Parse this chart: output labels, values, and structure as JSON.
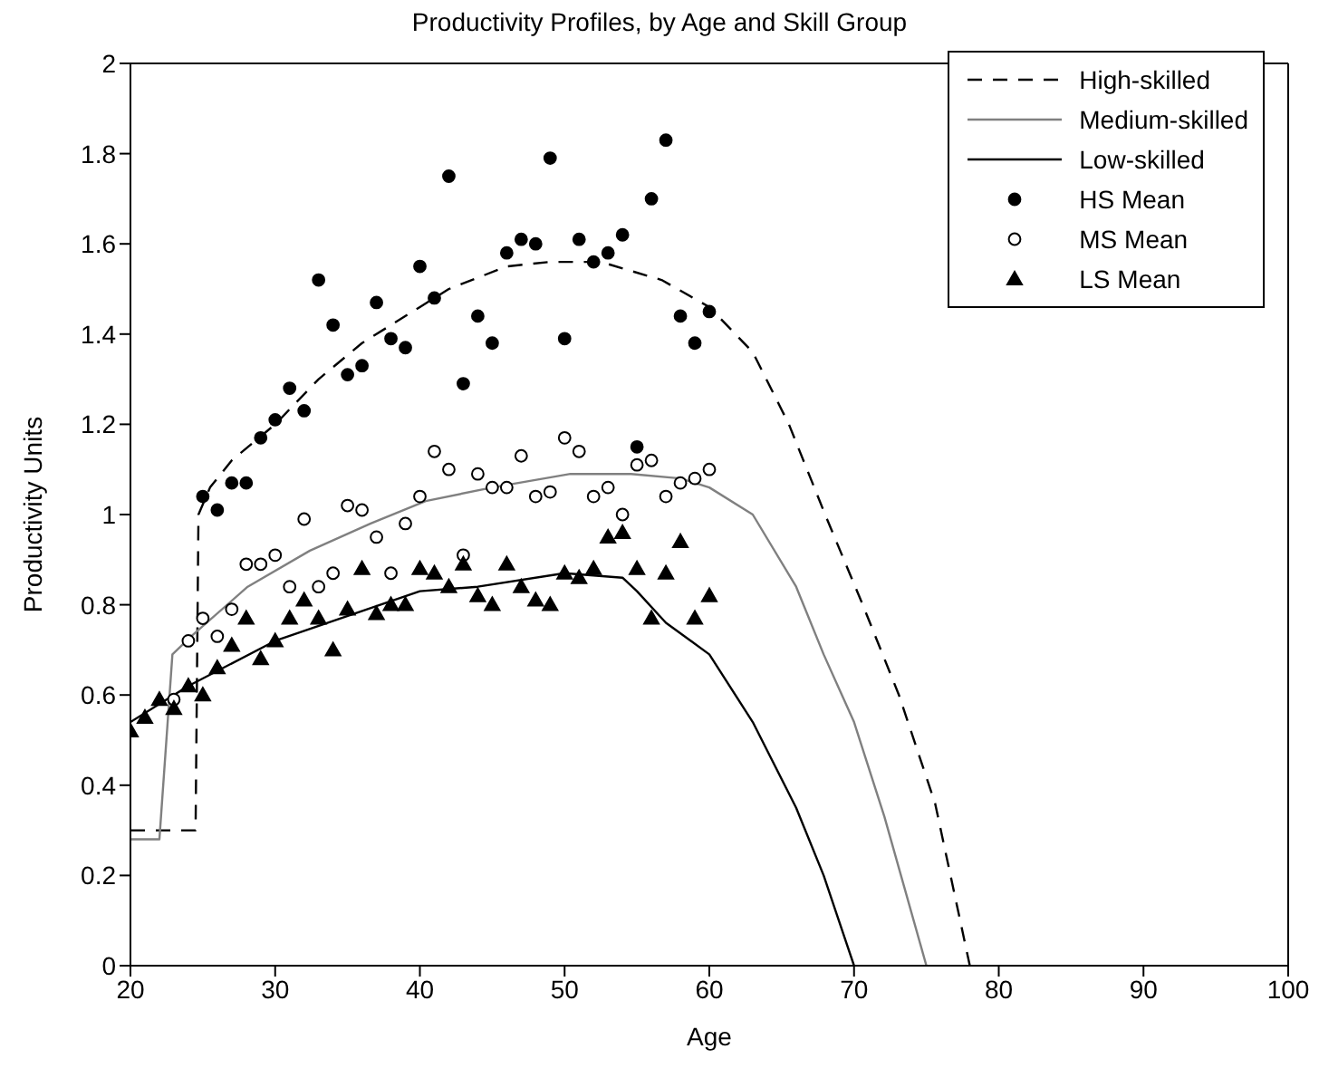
{
  "chart_data": {
    "type": "line",
    "title": "Productivity Profiles, by Age and Skill Group",
    "xlabel": "Age",
    "ylabel": "Productivity Units",
    "xlim": [
      20,
      100
    ],
    "xticks": [
      20,
      30,
      40,
      50,
      60,
      70,
      80,
      90,
      100
    ],
    "ylim": [
      0,
      2
    ],
    "yticks": [
      0,
      0.2,
      0.4,
      0.6,
      0.8,
      1,
      1.2,
      1.4,
      1.6,
      1.8,
      2
    ],
    "legend": "top right",
    "series": [
      {
        "name": "High-skilled",
        "line_style": "dashed",
        "marker": "none",
        "color": "#000000",
        "x": [
          20,
          24.5,
          24.7,
          25.5,
          27,
          30,
          33,
          36,
          40,
          42,
          46,
          49,
          52.5,
          56.7,
          60,
          63,
          65.5,
          68,
          70.6,
          73.1,
          75.6,
          78
        ],
        "values": [
          0.3,
          0.3,
          1.0,
          1.06,
          1.12,
          1.2,
          1.3,
          1.38,
          1.46,
          1.5,
          1.55,
          1.56,
          1.56,
          1.52,
          1.46,
          1.36,
          1.2,
          1.0,
          0.8,
          0.6,
          0.36,
          0
        ]
      },
      {
        "name": "Medium-skilled",
        "line_style": "solid",
        "marker": "none",
        "color": "#808080",
        "x": [
          20,
          22,
          22.9,
          24.2,
          28.1,
          32.4,
          36.6,
          40.4,
          45,
          50.4,
          54.6,
          58,
          60,
          63,
          66,
          67.9,
          70,
          72.1,
          75
        ],
        "values": [
          0.28,
          0.28,
          0.69,
          0.73,
          0.84,
          0.92,
          0.98,
          1.03,
          1.06,
          1.09,
          1.09,
          1.08,
          1.06,
          1.0,
          0.84,
          0.69,
          0.54,
          0.33,
          0
        ]
      },
      {
        "name": "Low-skilled",
        "line_style": "solid",
        "marker": "none",
        "color": "#000000",
        "x": [
          20,
          24,
          30,
          40,
          44,
          50,
          54,
          55,
          57,
          60,
          63,
          66,
          67.9,
          70
        ],
        "values": [
          0.54,
          0.62,
          0.72,
          0.83,
          0.84,
          0.87,
          0.86,
          0.83,
          0.76,
          0.69,
          0.54,
          0.35,
          0.2,
          0
        ]
      },
      {
        "name": "HS Mean",
        "type": "scatter",
        "marker": "circle",
        "color": "#000000",
        "x": [
          25,
          26,
          27,
          28,
          29,
          30,
          31,
          32,
          33,
          34,
          35,
          36,
          37,
          38,
          39,
          40,
          41,
          42,
          43,
          44,
          45,
          46,
          47,
          48,
          49,
          50,
          51,
          52,
          53,
          54,
          55,
          56,
          57,
          58,
          59,
          60
        ],
        "values": [
          1.04,
          1.01,
          1.07,
          1.07,
          1.17,
          1.21,
          1.28,
          1.23,
          1.52,
          1.42,
          1.31,
          1.33,
          1.47,
          1.39,
          1.37,
          1.55,
          1.48,
          1.75,
          1.29,
          1.44,
          1.38,
          1.58,
          1.61,
          1.6,
          1.79,
          1.39,
          1.61,
          1.56,
          1.58,
          1.62,
          1.15,
          1.7,
          1.83,
          1.44,
          1.38,
          1.45
        ]
      },
      {
        "name": "MS Mean",
        "type": "scatter",
        "marker": "circle",
        "color": "#ffffff",
        "x": [
          23,
          24,
          25,
          26,
          27,
          28,
          29,
          30,
          31,
          32,
          33,
          34,
          35,
          36,
          37,
          38,
          39,
          40,
          41,
          42,
          43,
          44,
          45,
          46,
          47,
          48,
          49,
          50,
          51,
          52,
          53,
          54,
          55,
          56,
          57,
          58,
          59,
          60
        ],
        "values": [
          0.59,
          0.72,
          0.77,
          0.73,
          0.79,
          0.89,
          0.89,
          0.91,
          0.84,
          0.99,
          0.84,
          0.87,
          1.02,
          1.01,
          0.95,
          0.87,
          0.98,
          1.04,
          1.14,
          1.1,
          0.91,
          1.09,
          1.06,
          1.06,
          1.13,
          1.04,
          1.05,
          1.17,
          1.14,
          1.04,
          1.06,
          1.0,
          1.11,
          1.12,
          1.04,
          1.07,
          1.08,
          1.1
        ]
      },
      {
        "name": "LS Mean",
        "type": "scatter",
        "marker": "triangle",
        "color": "#000000",
        "x": [
          20,
          21,
          22,
          23,
          24,
          25,
          26,
          27,
          28,
          29,
          30,
          31,
          32,
          33,
          34,
          35,
          36,
          37,
          38,
          39,
          40,
          41,
          42,
          43,
          44,
          45,
          46,
          47,
          48,
          49,
          50,
          51,
          52,
          53,
          54,
          55,
          56,
          57,
          58,
          59,
          60
        ],
        "values": [
          0.52,
          0.55,
          0.59,
          0.57,
          0.62,
          0.6,
          0.66,
          0.71,
          0.77,
          0.68,
          0.72,
          0.77,
          0.81,
          0.77,
          0.7,
          0.79,
          0.88,
          0.78,
          0.8,
          0.8,
          0.88,
          0.87,
          0.84,
          0.89,
          0.82,
          0.8,
          0.89,
          0.84,
          0.81,
          0.8,
          0.87,
          0.86,
          0.88,
          0.95,
          0.96,
          0.88,
          0.77,
          0.87,
          0.94,
          0.77,
          0.82
        ]
      }
    ]
  }
}
